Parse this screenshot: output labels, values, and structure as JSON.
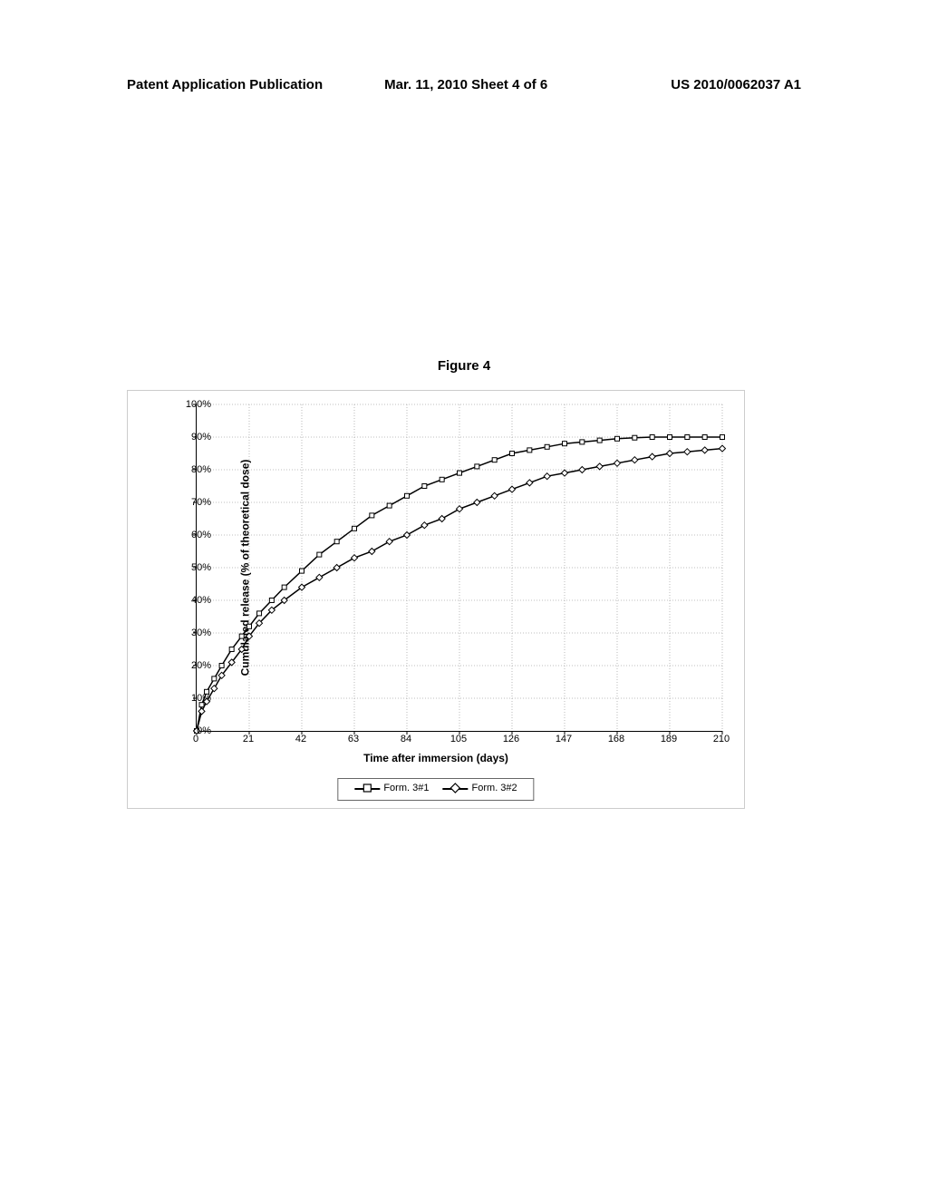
{
  "header": {
    "left": "Patent Application Publication",
    "center": "Mar. 11, 2010  Sheet 4 of 6",
    "right": "US 2010/0062037 A1"
  },
  "figure_title": "Figure 4",
  "chart": {
    "type": "line",
    "x_axis_title": "Time after immersion (days)",
    "y_axis_title": "Cumulated release (% of theoretical dose)",
    "xlim": [
      0,
      210
    ],
    "ylim": [
      0,
      100
    ],
    "xtick_step": 21,
    "ytick_step": 10,
    "x_ticks": [
      0,
      21,
      42,
      63,
      84,
      105,
      126,
      147,
      168,
      189,
      210
    ],
    "y_ticks": [
      "0%",
      "10%",
      "20%",
      "30%",
      "40%",
      "50%",
      "60%",
      "70%",
      "80%",
      "90%",
      "100%"
    ],
    "background_color": "#ffffff",
    "grid_color": "#aaaaaa",
    "line_color": "#000000",
    "line_width": 1.5,
    "marker_size": 5,
    "marker_fill": "#ffffff",
    "marker_stroke": "#000000",
    "series": [
      {
        "name": "Form. 3#1",
        "marker": "square",
        "x": [
          0,
          2,
          4,
          7,
          10,
          14,
          18,
          21,
          25,
          30,
          35,
          42,
          49,
          56,
          63,
          70,
          77,
          84,
          91,
          98,
          105,
          112,
          119,
          126,
          133,
          140,
          147,
          154,
          161,
          168,
          175,
          182,
          189,
          196,
          203,
          210
        ],
        "y": [
          0,
          8,
          12,
          16,
          20,
          25,
          29,
          32,
          36,
          40,
          44,
          49,
          54,
          58,
          62,
          66,
          69,
          72,
          75,
          77,
          79,
          81,
          83,
          85,
          86,
          87,
          88,
          88.5,
          89,
          89.5,
          89.8,
          90,
          90,
          90,
          90,
          90
        ]
      },
      {
        "name": "Form. 3#2",
        "marker": "diamond",
        "x": [
          0,
          2,
          4,
          7,
          10,
          14,
          18,
          21,
          25,
          30,
          35,
          42,
          49,
          56,
          63,
          70,
          77,
          84,
          91,
          98,
          105,
          112,
          119,
          126,
          133,
          140,
          147,
          154,
          161,
          168,
          175,
          182,
          189,
          196,
          203,
          210
        ],
        "y": [
          0,
          6,
          9,
          13,
          17,
          21,
          25,
          29,
          33,
          37,
          40,
          44,
          47,
          50,
          53,
          55,
          58,
          60,
          63,
          65,
          68,
          70,
          72,
          74,
          76,
          78,
          79,
          80,
          81,
          82,
          83,
          84,
          85,
          85.5,
          86,
          86.5
        ]
      }
    ],
    "legend": {
      "items": [
        "Form. 3#1",
        "Form. 3#2"
      ]
    }
  }
}
